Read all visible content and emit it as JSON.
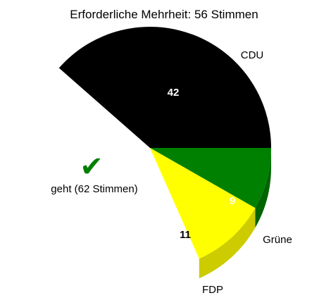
{
  "chart_data": {
    "type": "pie",
    "title": "Erforderliche Mehrheit: 56 Stimmen",
    "slices": [
      {
        "label": "CDU",
        "value": 42,
        "color": "#000000",
        "side_color": "#000000",
        "value_text_color": "#ffffff"
      },
      {
        "label": "Grüne",
        "value": 9,
        "color": "#008000",
        "side_color": "#006400",
        "value_text_color": "#ffffff"
      },
      {
        "label": "FDP",
        "value": 11,
        "color": "#ffff00",
        "side_color": "#cccc00",
        "value_text_color": "#000000"
      }
    ],
    "status": {
      "label": "geht (62 Stimmen)",
      "icon": "checkmark-icon",
      "color": "#008000"
    },
    "three_d": true
  }
}
